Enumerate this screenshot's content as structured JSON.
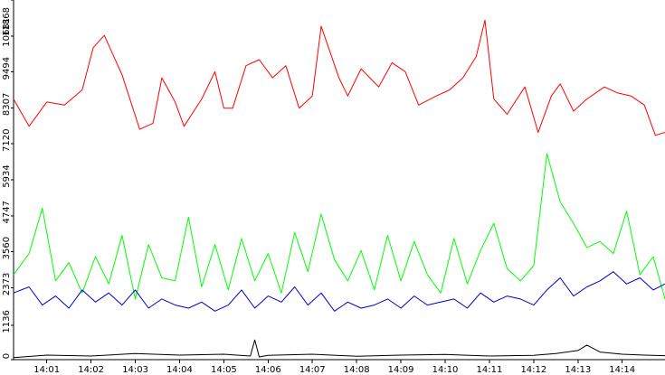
{
  "chart_data": {
    "type": "line",
    "title": "",
    "xlabel": "",
    "ylabel": "",
    "grid": false,
    "legend": "none",
    "xlim": [
      "14:00:15",
      "14:14:58"
    ],
    "ylim": [
      0,
      11868
    ],
    "x_ticks": [
      "14:01",
      "14:02",
      "14:03",
      "14:04",
      "14:05",
      "14:06",
      "14:07",
      "14:08",
      "14:09",
      "14:10",
      "14:11",
      "14:12",
      "14:13",
      "14:14"
    ],
    "y_ticks": [
      "0",
      "1136",
      "2373",
      "3560",
      "4747",
      "5934",
      "7120",
      "8307",
      "9494",
      "10681",
      "11868"
    ],
    "series": [
      {
        "color": "#ff0000",
        "x": [
          "14:00:15",
          "14:00:36",
          "14:01:00",
          "14:01:24",
          "14:01:48",
          "14:02:03",
          "14:02:18",
          "14:02:42",
          "14:03:06",
          "14:03:24",
          "14:03:36",
          "14:03:54",
          "14:04:06",
          "14:04:30",
          "14:04:48",
          "14:05:00",
          "14:05:12",
          "14:05:30",
          "14:05:48",
          "14:06:06",
          "14:06:24",
          "14:06:42",
          "14:07:00",
          "14:07:12",
          "14:07:36",
          "14:07:48",
          "14:08:06",
          "14:08:30",
          "14:08:48",
          "14:09:06",
          "14:09:24",
          "14:09:48",
          "14:10:06",
          "14:10:24",
          "14:10:42",
          "14:10:54",
          "14:11:06",
          "14:11:24",
          "14:11:48",
          "14:12:06",
          "14:12:24",
          "14:12:36",
          "14:12:54",
          "14:13:12",
          "14:13:36",
          "14:13:54",
          "14:14:12",
          "14:14:30",
          "14:14:45",
          "14:14:58"
        ],
        "values": [
          8600,
          7700,
          8500,
          8400,
          8900,
          10300,
          10700,
          9400,
          7600,
          7800,
          9300,
          8500,
          7700,
          8600,
          9500,
          8300,
          8300,
          9700,
          9900,
          9300,
          9700,
          8300,
          8700,
          11000,
          9300,
          8700,
          9600,
          9000,
          9800,
          9500,
          8400,
          8700,
          8900,
          9300,
          10000,
          11200,
          8600,
          8100,
          9000,
          7500,
          8700,
          9100,
          8200,
          8600,
          9000,
          8800,
          8700,
          8400,
          7400,
          7500
        ]
      },
      {
        "color": "#00ff00",
        "x": [
          "14:00:15",
          "14:00:36",
          "14:00:54",
          "14:01:12",
          "14:01:30",
          "14:01:48",
          "14:02:06",
          "14:02:24",
          "14:02:42",
          "14:03:00",
          "14:03:18",
          "14:03:36",
          "14:03:54",
          "14:04:12",
          "14:04:30",
          "14:04:48",
          "14:05:06",
          "14:05:24",
          "14:05:42",
          "14:06:00",
          "14:06:18",
          "14:06:36",
          "14:06:54",
          "14:07:12",
          "14:07:30",
          "14:07:48",
          "14:08:06",
          "14:08:24",
          "14:08:42",
          "14:09:00",
          "14:09:18",
          "14:09:36",
          "14:09:54",
          "14:10:12",
          "14:10:30",
          "14:10:48",
          "14:11:06",
          "14:11:24",
          "14:11:42",
          "14:12:00",
          "14:12:18",
          "14:12:36",
          "14:12:54",
          "14:13:12",
          "14:13:30",
          "14:13:48",
          "14:14:06",
          "14:14:24",
          "14:14:42",
          "14:14:58"
        ],
        "values": [
          2800,
          3500,
          5000,
          2600,
          3200,
          2200,
          3400,
          2500,
          4100,
          2000,
          3800,
          2700,
          2600,
          4700,
          2400,
          3800,
          2300,
          4000,
          2600,
          3500,
          2200,
          4200,
          2900,
          4800,
          3300,
          2600,
          3600,
          2300,
          4100,
          2600,
          3900,
          2800,
          2200,
          4000,
          2500,
          3600,
          4500,
          3000,
          2600,
          3100,
          6800,
          5200,
          4500,
          3700,
          3900,
          3500,
          4900,
          2800,
          3400,
          2000
        ]
      },
      {
        "color": "#0000c8",
        "x": [
          "14:00:15",
          "14:00:36",
          "14:00:54",
          "14:01:12",
          "14:01:30",
          "14:01:48",
          "14:02:06",
          "14:02:24",
          "14:02:42",
          "14:03:00",
          "14:03:18",
          "14:03:36",
          "14:03:54",
          "14:04:12",
          "14:04:30",
          "14:04:48",
          "14:05:06",
          "14:05:24",
          "14:05:42",
          "14:06:00",
          "14:06:18",
          "14:06:36",
          "14:06:54",
          "14:07:12",
          "14:07:30",
          "14:07:48",
          "14:08:06",
          "14:08:24",
          "14:08:42",
          "14:09:00",
          "14:09:18",
          "14:09:36",
          "14:09:54",
          "14:10:12",
          "14:10:30",
          "14:10:48",
          "14:11:06",
          "14:11:24",
          "14:11:42",
          "14:12:00",
          "14:12:18",
          "14:12:36",
          "14:12:54",
          "14:13:12",
          "14:13:30",
          "14:13:48",
          "14:14:06",
          "14:14:24",
          "14:14:42",
          "14:14:58"
        ],
        "values": [
          2200,
          2400,
          1800,
          2100,
          1700,
          2300,
          1900,
          2200,
          1800,
          2300,
          1700,
          2000,
          1800,
          1700,
          1900,
          1600,
          1800,
          2300,
          1700,
          2100,
          1900,
          2400,
          1800,
          2200,
          1600,
          1900,
          1700,
          1800,
          2000,
          1700,
          2100,
          1800,
          1900,
          2000,
          1700,
          2200,
          1900,
          2100,
          2000,
          1800,
          2300,
          2700,
          2100,
          2400,
          2600,
          2900,
          2500,
          2700,
          2300,
          2500
        ]
      },
      {
        "color": "#000000",
        "x": [
          "14:00:15",
          "14:01:00",
          "14:02:00",
          "14:03:00",
          "14:04:00",
          "14:05:00",
          "14:05:36",
          "14:05:42",
          "14:05:48",
          "14:06:00",
          "14:07:00",
          "14:08:00",
          "14:09:00",
          "14:10:00",
          "14:11:00",
          "14:12:00",
          "14:12:30",
          "14:13:00",
          "14:13:12",
          "14:13:30",
          "14:14:00",
          "14:14:30",
          "14:14:58"
        ],
        "values": [
          70,
          150,
          120,
          200,
          150,
          180,
          120,
          650,
          90,
          140,
          180,
          110,
          150,
          170,
          120,
          140,
          200,
          300,
          480,
          250,
          180,
          150,
          130
        ]
      }
    ]
  }
}
